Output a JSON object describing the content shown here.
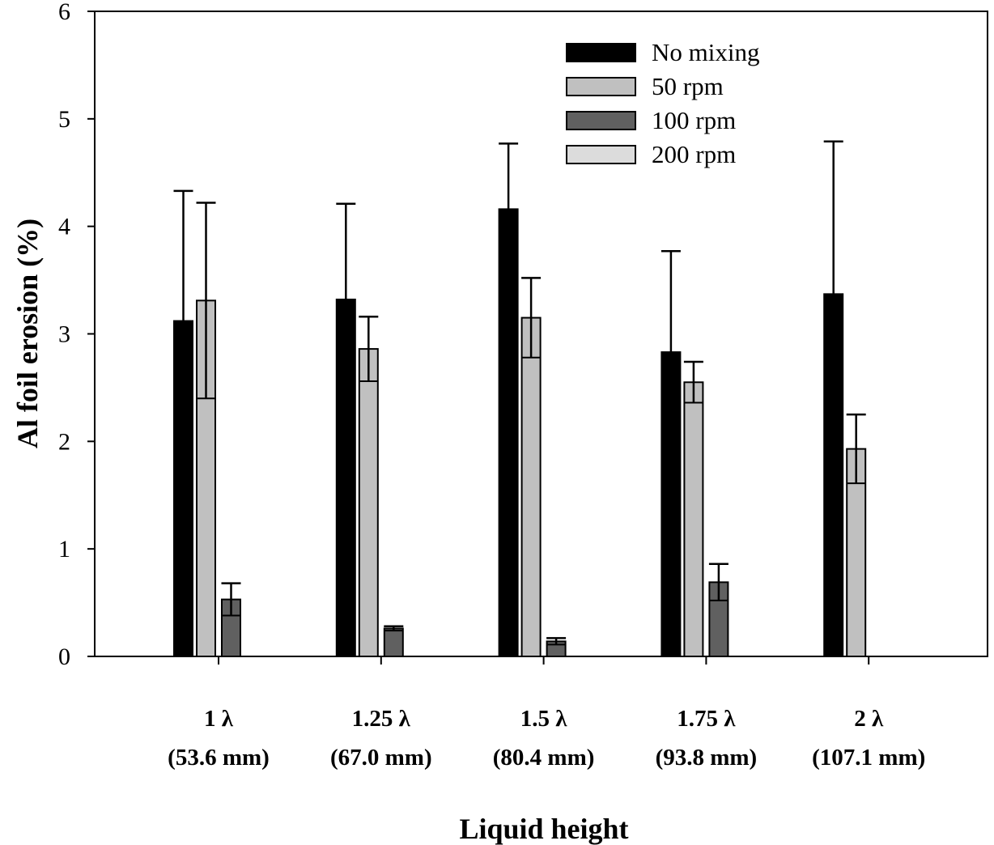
{
  "chart_data": {
    "type": "bar",
    "title": "",
    "xlabel": "Liquid height",
    "ylabel": "Al foil erosion (%)",
    "ylim": [
      0,
      6
    ],
    "yticks": [
      0,
      1,
      2,
      3,
      4,
      5,
      6
    ],
    "grid": false,
    "legend_position": "top-right",
    "categories": [
      {
        "line1": "1 λ",
        "line2": "(53.6 mm)"
      },
      {
        "line1": "1.25 λ",
        "line2": "(67.0 mm)"
      },
      {
        "line1": "1.5 λ",
        "line2": "(80.4 mm)"
      },
      {
        "line1": "1.75 λ",
        "line2": "(93.8 mm)"
      },
      {
        "line1": "2 λ",
        "line2": "(107.1 mm)"
      }
    ],
    "series": [
      {
        "name": "No mixing",
        "color": "#000000",
        "values": [
          3.12,
          3.32,
          4.16,
          2.83,
          3.37
        ],
        "error": [
          1.21,
          0.89,
          0.61,
          0.94,
          1.42
        ]
      },
      {
        "name": "50 rpm",
        "color": "#c0c0c0",
        "values": [
          3.31,
          2.86,
          3.15,
          2.55,
          1.93
        ],
        "error": [
          0.91,
          0.3,
          0.37,
          0.19,
          0.32
        ]
      },
      {
        "name": "100 rpm",
        "color": "#606060",
        "values": [
          0.53,
          0.26,
          0.14,
          0.69,
          0.0
        ],
        "error": [
          0.15,
          0.02,
          0.03,
          0.17,
          0.0
        ]
      },
      {
        "name": "200 rpm",
        "color": "#dcdcdc",
        "values": [
          0,
          0,
          0,
          0,
          0
        ],
        "error": [
          0,
          0,
          0,
          0,
          0
        ]
      }
    ]
  }
}
